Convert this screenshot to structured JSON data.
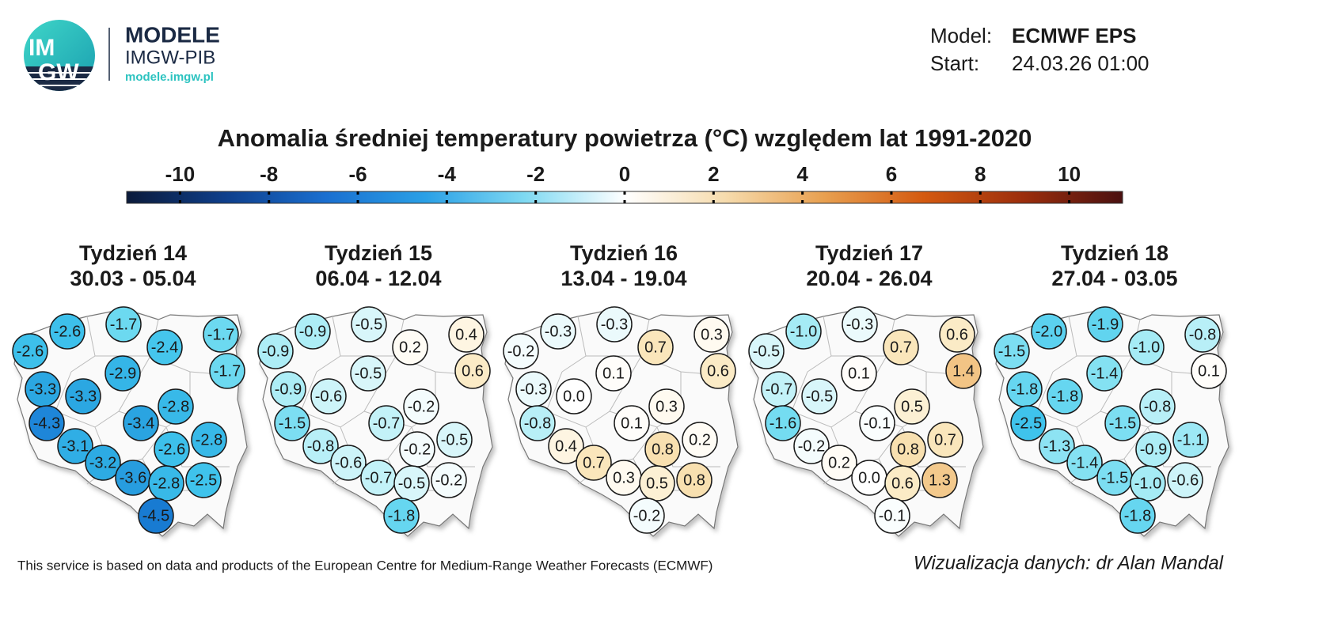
{
  "header": {
    "logo_top": "IM",
    "logo_bottom": "GW",
    "brand": "MODELE",
    "brand_sub": "IMGW-PIB",
    "url": "modele.imgw.pl",
    "model_label": "Model:",
    "model": "ECMWF EPS",
    "start_label": "Start:",
    "start": "24.03.26 01:00"
  },
  "title": "Anomalia średniej temperatury powietrza (°C) względem lat 1991-2020",
  "colorbar": {
    "lim": [
      -11.2,
      11.2
    ],
    "ticks": [
      -10,
      -8,
      -6,
      -4,
      -2,
      0,
      2,
      4,
      6,
      8,
      10
    ],
    "colors": [
      "#0b1a3a",
      "#0e3f8c",
      "#1a6fd0",
      "#2aa0e6",
      "#7fd9f2",
      "#ffffff",
      "#f6dcae",
      "#e8a050",
      "#d45a10",
      "#9c2e0c",
      "#4a1010"
    ]
  },
  "weeks": [
    {
      "name": "Tydzień 14",
      "dates": "30.03 - 05.04",
      "values": [
        -2.6,
        -2.6,
        -1.7,
        -2.4,
        -1.7,
        -1.7,
        -2.9,
        -3.3,
        -3.3,
        -2.8,
        -4.3,
        -3.4,
        -2.8,
        -3.1,
        -2.6,
        -3.2,
        -3.6,
        -2.8,
        -2.5,
        -4.5
      ],
      "value_labels": [
        "-2.6",
        "-2.6",
        "-1.7",
        "-2.4",
        "-1.7",
        "-1.7",
        "-2.9",
        "-3.3",
        "-3.3",
        "-2.8",
        "-4.3",
        "-3.4",
        "-2.8",
        "-3.1",
        "-2.6",
        "-3.2",
        "-3.6",
        "-2.8",
        "-2.5",
        "-4.5"
      ]
    },
    {
      "name": "Tydzień 15",
      "dates": "06.04 - 12.04",
      "values": [
        -0.9,
        -0.9,
        -0.5,
        0.2,
        0.4,
        0.6,
        -0.5,
        -0.9,
        -0.6,
        -0.2,
        -1.5,
        -0.7,
        -0.5,
        -0.8,
        -0.2,
        -0.6,
        -0.7,
        -0.5,
        -0.2,
        -1.8
      ],
      "value_labels": [
        "-0.9",
        "-0.9",
        "-0.5",
        "0.2",
        "0.4",
        "0.6",
        "-0.5",
        "-0.9",
        "-0.6",
        "-0.2",
        "-1.5",
        "-0.7",
        "-0.5",
        "-0.8",
        "-0.2",
        "-0.6",
        "-0.7",
        "-0.5",
        "-0.2",
        "-1.8"
      ]
    },
    {
      "name": "Tydzień 16",
      "dates": "13.04 - 19.04",
      "values": [
        -0.2,
        -0.3,
        -0.3,
        0.7,
        0.3,
        0.6,
        0.1,
        -0.3,
        0.0,
        0.3,
        -0.8,
        0.1,
        0.2,
        0.4,
        0.8,
        0.7,
        0.3,
        0.5,
        0.8,
        -0.2
      ],
      "value_labels": [
        "-0.2",
        "-0.3",
        "-0.3",
        "0.7",
        "0.3",
        "0.6",
        "0.1",
        "-0.3",
        "0.0",
        "0.3",
        "-0.8",
        "0.1",
        "0.2",
        "0.4",
        "0.8",
        "0.7",
        "0.3",
        "0.5",
        "0.8",
        "-0.2"
      ]
    },
    {
      "name": "Tydzień 17",
      "dates": "20.04 - 26.04",
      "values": [
        -0.5,
        -1.0,
        -0.3,
        0.7,
        0.6,
        1.4,
        0.1,
        -0.7,
        -0.5,
        0.5,
        -1.6,
        -0.1,
        0.7,
        -0.2,
        0.8,
        0.2,
        0.0,
        0.6,
        1.3,
        -0.1
      ],
      "value_labels": [
        "-0.5",
        "-1.0",
        "-0.3",
        "0.7",
        "0.6",
        "1.4",
        "0.1",
        "-0.7",
        "-0.5",
        "0.5",
        "-1.6",
        "-0.1",
        "0.7",
        "-0.2",
        "0.8",
        "0.2",
        "0.0",
        "0.6",
        "1.3",
        "-0.1"
      ]
    },
    {
      "name": "Tydzień 18",
      "dates": "27.04 - 03.05",
      "values": [
        -1.5,
        -2.0,
        -1.9,
        -1.0,
        -0.8,
        0.1,
        -1.4,
        -1.8,
        -1.8,
        -0.8,
        -2.5,
        -1.5,
        -1.1,
        -1.3,
        -0.9,
        -1.4,
        -1.5,
        -1.0,
        -0.6,
        -1.8
      ],
      "value_labels": [
        "-1.5",
        "-2.0",
        "-1.9",
        "-1.0",
        "-0.8",
        "0.1",
        "-1.4",
        "-1.8",
        "-1.8",
        "-0.8",
        "-2.5",
        "-1.5",
        "-1.1",
        "-1.3",
        "-0.9",
        "-1.4",
        "-1.5",
        "-1.0",
        "-0.6",
        "-1.8"
      ]
    }
  ],
  "footer": {
    "source": "This service is based on data and products of the European Centre for Medium-Range Weather Forecasts (ECMWF)",
    "credit": "Wizualizacja danych: dr Alan Mandal"
  }
}
